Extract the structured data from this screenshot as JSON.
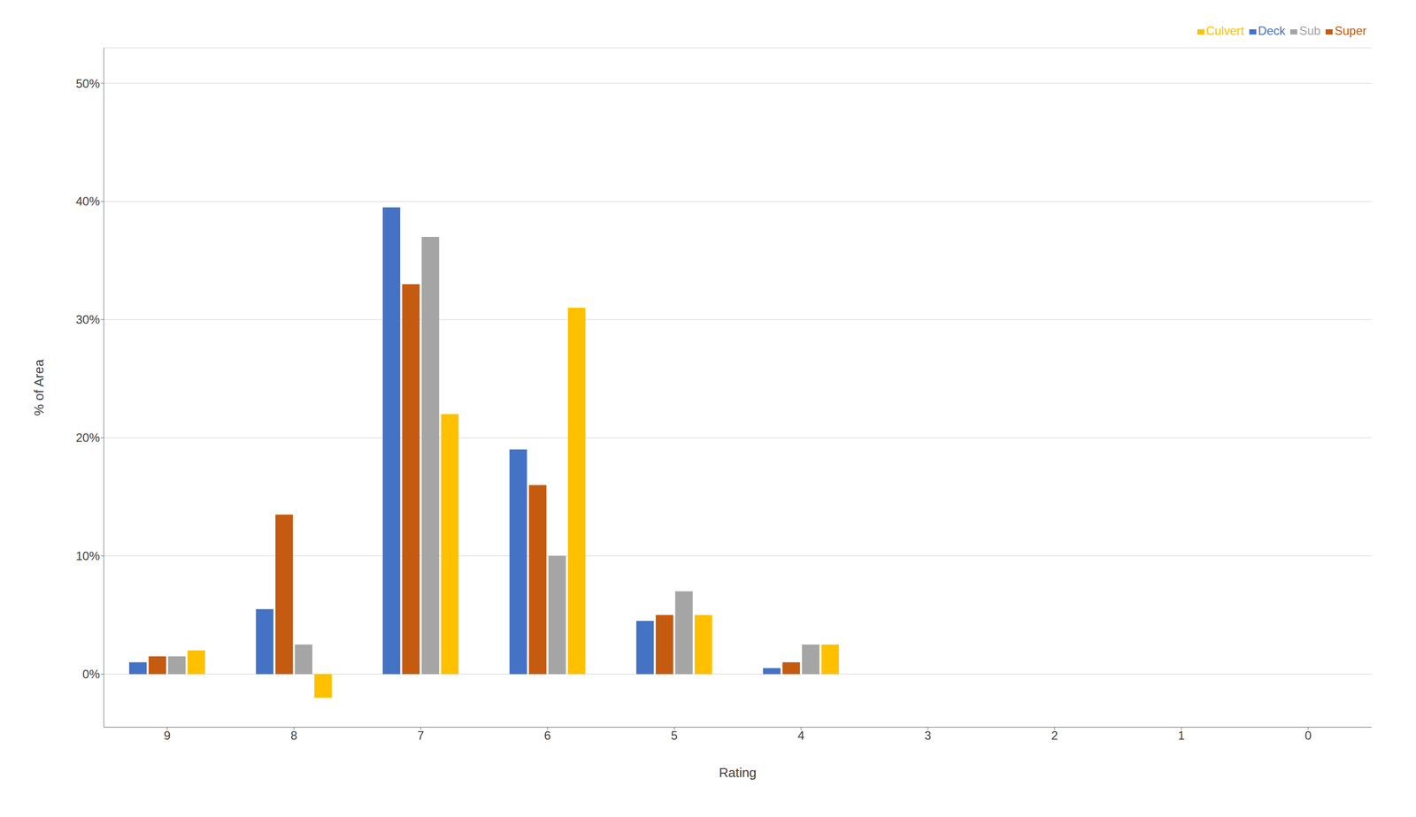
{
  "chart_data": {
    "type": "bar",
    "categories": [
      "9",
      "8",
      "7",
      "6",
      "5",
      "4",
      "3",
      "2",
      "1",
      "0"
    ],
    "series": [
      {
        "name": "Deck",
        "color": "#4472C4",
        "values": [
          1.0,
          5.5,
          39.5,
          19.0,
          4.5,
          0.5,
          0,
          0,
          0,
          0
        ]
      },
      {
        "name": "Super",
        "color": "#C55A11",
        "values": [
          1.5,
          13.5,
          33.0,
          16.0,
          5.0,
          1.0,
          0,
          0,
          0,
          0
        ]
      },
      {
        "name": "Sub",
        "color": "#A5A5A5",
        "values": [
          1.5,
          2.5,
          37.0,
          10.0,
          7.0,
          2.5,
          0,
          0,
          0,
          0
        ]
      },
      {
        "name": "Culvert",
        "color": "#FFC000",
        "values": [
          2.0,
          -2.0,
          22.0,
          31.0,
          5.0,
          2.5,
          0,
          0,
          0,
          0
        ]
      }
    ],
    "xlabel": "Rating",
    "ylabel": "% of Area",
    "ylim": [
      -4.5,
      53
    ],
    "yticks": [
      {
        "value": 0,
        "label": "0%"
      },
      {
        "value": 10,
        "label": "10%"
      },
      {
        "value": 20,
        "label": "20%"
      },
      {
        "value": 30,
        "label": "30%"
      },
      {
        "value": 40,
        "label": "40%"
      },
      {
        "value": 50,
        "label": "50%"
      }
    ],
    "grid": true,
    "legend": "upper right"
  }
}
